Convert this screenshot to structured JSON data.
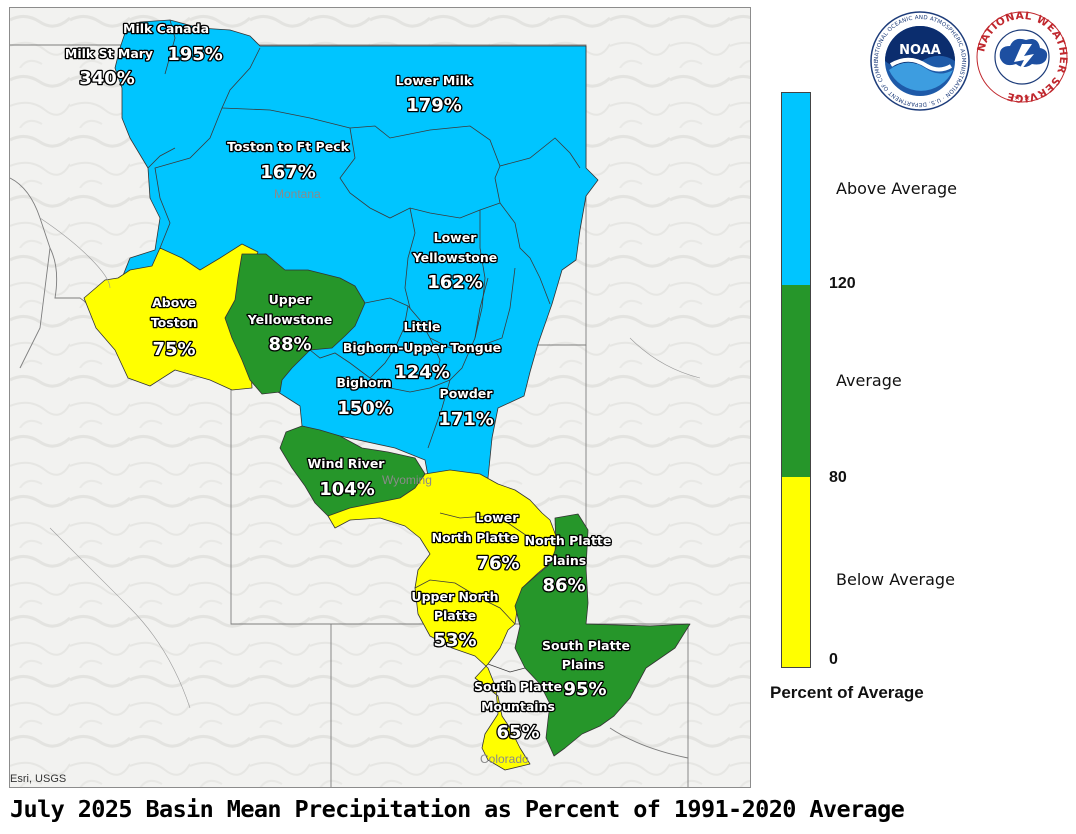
{
  "title": "July 2025 Basin Mean Precipitation as Percent of 1991-2020 Average",
  "attribution": "Esri, USGS",
  "state_labels": [
    "Montana",
    "Wyoming",
    "Colorado"
  ],
  "colors": {
    "above": "#00c5ff",
    "average": "#26962a",
    "below": "#ffff00",
    "boundary": "#333333"
  },
  "legend": {
    "title": "Percent of Average",
    "categories": [
      {
        "label": "Above Average",
        "color": "#00c5ff"
      },
      {
        "label": "Average",
        "color": "#26962a"
      },
      {
        "label": "Below Average",
        "color": "#ffff00"
      }
    ],
    "breaks": [
      "120",
      "80",
      "0"
    ]
  },
  "logos": {
    "noaa_text": "NOAA",
    "noaa_ring_text": "NATIONAL OCEANIC AND ATMOSPHERIC ADMINISTRATION · U.S. DEPARTMENT OF COMMERCE",
    "nws_text": "NATIONAL WEATHER SERVICE"
  },
  "basins": [
    {
      "name": "Milk Canada",
      "percent": "195%",
      "category": "above"
    },
    {
      "name": "Milk St Mary",
      "percent": "340%",
      "category": "above"
    },
    {
      "name": "Lower Milk",
      "percent": "179%",
      "category": "above"
    },
    {
      "name": "Toston to Ft Peck",
      "percent": "167%",
      "category": "above"
    },
    {
      "name": "Lower Yellowstone",
      "percent": "162%",
      "category": "above"
    },
    {
      "name": "Above Toston",
      "percent": "75%",
      "category": "below"
    },
    {
      "name": "Upper Yellowstone",
      "percent": "88%",
      "category": "average"
    },
    {
      "name": "Little Bighorn-Upper Tongue",
      "percent": "124%",
      "category": "above"
    },
    {
      "name": "Bighorn",
      "percent": "150%",
      "category": "above"
    },
    {
      "name": "Powder",
      "percent": "171%",
      "category": "above"
    },
    {
      "name": "Wind River",
      "percent": "104%",
      "category": "average"
    },
    {
      "name": "Lower North Platte",
      "percent": "76%",
      "category": "below"
    },
    {
      "name": "North Platte Plains",
      "percent": "86%",
      "category": "average"
    },
    {
      "name": "Upper North Platte",
      "percent": "53%",
      "category": "below"
    },
    {
      "name": "South Platte Plains",
      "percent": "95%",
      "category": "average"
    },
    {
      "name": "South Platte Mountains",
      "percent": "65%",
      "category": "below"
    }
  ]
}
